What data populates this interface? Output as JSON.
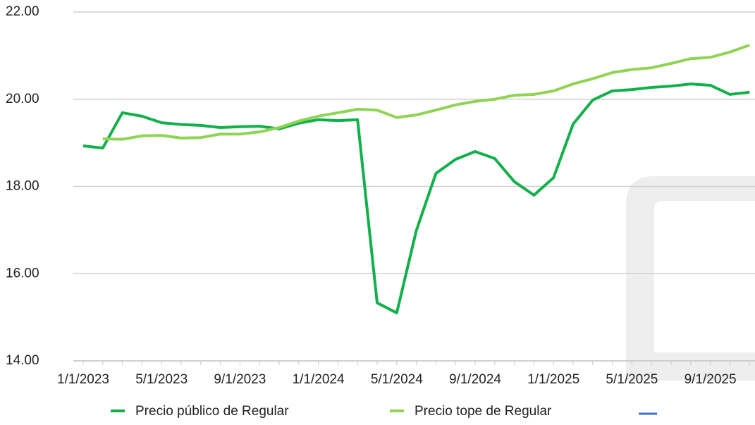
{
  "chart_data": {
    "type": "line",
    "categories": [
      "1/1/2023",
      null,
      null,
      null,
      "5/1/2023",
      null,
      null,
      null,
      "9/1/2023",
      null,
      null,
      null,
      "1/1/2024",
      null,
      null,
      null,
      "5/1/2024",
      null,
      null,
      null,
      "9/1/2024",
      null,
      null,
      null,
      "1/1/2025",
      null,
      null,
      null,
      "5/1/2025",
      null,
      null,
      null,
      "9/1/2025",
      null,
      null
    ],
    "series": [
      {
        "name": "Precio público de Regular",
        "color": "#12b04a",
        "values": [
          18.93,
          18.88,
          19.69,
          19.61,
          19.46,
          19.42,
          19.4,
          19.35,
          19.37,
          19.38,
          19.32,
          19.45,
          19.53,
          19.51,
          19.53,
          15.33,
          15.1,
          16.99,
          18.3,
          18.62,
          18.8,
          18.64,
          18.11,
          17.8,
          18.2,
          19.43,
          19.98,
          20.19,
          20.22,
          20.27,
          20.3,
          20.35,
          20.32,
          20.11,
          20.16
        ]
      },
      {
        "name": "Precio tope de Regular",
        "color": "#8fd454",
        "values": [
          null,
          19.09,
          19.08,
          19.16,
          19.17,
          19.11,
          19.12,
          19.2,
          19.2,
          19.25,
          19.35,
          19.5,
          19.61,
          19.69,
          19.77,
          19.75,
          19.58,
          19.64,
          19.75,
          19.87,
          19.95,
          20.0,
          20.09,
          20.11,
          20.19,
          20.35,
          20.47,
          20.61,
          20.68,
          20.72,
          20.82,
          20.93,
          20.96,
          21.08,
          21.24
        ]
      }
    ],
    "ylim": [
      14,
      22
    ],
    "yticks": [
      {
        "value": 14,
        "label": "14.00"
      },
      {
        "value": 16,
        "label": "16.00"
      },
      {
        "value": 18,
        "label": "18.00"
      },
      {
        "value": 20,
        "label": "20.00"
      },
      {
        "value": 22,
        "label": "22.00"
      }
    ],
    "grid": true,
    "legend": "bottom"
  }
}
